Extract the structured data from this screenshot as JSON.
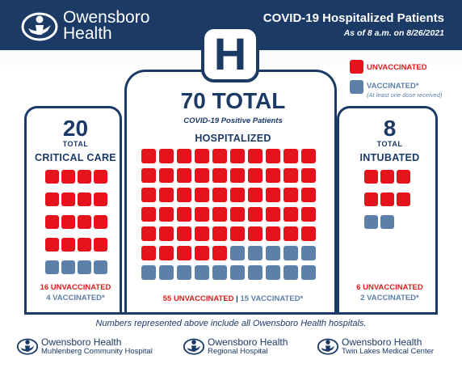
{
  "header": {
    "brand_line1": "Owensboro",
    "brand_line2": "Health",
    "title": "COVID-19 Hospitalized Patients",
    "subtitle": "As of 8 a.m. on 8/26/2021"
  },
  "badge": {
    "letter": "H"
  },
  "colors": {
    "navy": "#1b3a66",
    "unvaccinated": "#e5131b",
    "vaccinated": "#5d80aa"
  },
  "legend": {
    "unvaccinated": "UNVACCINATED",
    "vaccinated": "VACCINATED*",
    "vaccinated_note": "(At least one dose received)"
  },
  "critical_care": {
    "total": "20",
    "total_word": "TOTAL",
    "label": "CRITICAL CARE",
    "unvaccinated": 16,
    "vaccinated": 4,
    "unvaccinated_text": "16 UNVACCINATED",
    "vaccinated_text": "4 VACCINATED*"
  },
  "hospitalized": {
    "total": "70 TOTAL",
    "subtitle": "COVID-19 Positive Patients",
    "label": "HOSPITALIZED",
    "unvaccinated": 55,
    "vaccinated": 15,
    "unvaccinated_text": "55 UNVACCINATED",
    "separator": "|",
    "vaccinated_text": "15 VACCINATED*"
  },
  "intubated": {
    "total": "8",
    "total_word": "TOTAL",
    "label": "INTUBATED",
    "unvaccinated": 6,
    "vaccinated": 2,
    "unvaccinated_text": "6 UNVACCINATED",
    "vaccinated_text": "2 VACCINATED*"
  },
  "footnote": "Numbers represented above include all Owensboro Health hospitals.",
  "hospitals": [
    {
      "name": "Owensboro Health",
      "sub": "Muhlenberg Community Hospital"
    },
    {
      "name": "Owensboro Health",
      "sub": "Regional Hospital"
    },
    {
      "name": "Owensboro Health",
      "sub": "Twin Lakes Medical Center"
    }
  ]
}
